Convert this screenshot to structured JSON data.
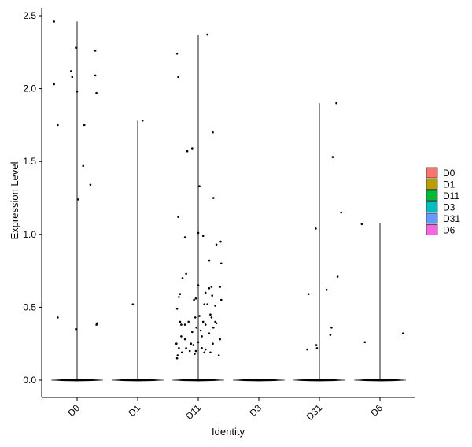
{
  "chart_data": {
    "type": "scatter",
    "subtype": "violin-with-jitter",
    "xlabel": "Identity",
    "ylabel": "Expression Level",
    "categories": [
      "D0",
      "D1",
      "D11",
      "D3",
      "D31",
      "D6"
    ],
    "ylim": [
      -0.13,
      2.55
    ],
    "yticks": [
      0.0,
      0.5,
      1.0,
      1.5,
      2.0,
      2.5
    ],
    "ytick_labels": [
      "0.0",
      "0.5",
      "1.0",
      "1.5",
      "2.0",
      "2.5"
    ],
    "grid": false,
    "legend_position": "right",
    "legend": [
      {
        "name": "D0",
        "color": "#F8766D"
      },
      {
        "name": "D1",
        "color": "#B79F00"
      },
      {
        "name": "D11",
        "color": "#00BA38"
      },
      {
        "name": "D3",
        "color": "#00BFC4"
      },
      {
        "name": "D31",
        "color": "#619CFF"
      },
      {
        "name": "D6",
        "color": "#F564E3"
      }
    ],
    "violins": [
      {
        "category": "D0",
        "max": 2.46,
        "baseline": 0.0
      },
      {
        "category": "D1",
        "max": 1.78,
        "baseline": 0.0
      },
      {
        "category": "D11",
        "max": 2.37,
        "baseline": 0.0
      },
      {
        "category": "D3",
        "max": 0.0,
        "baseline": 0.0
      },
      {
        "category": "D31",
        "max": 1.9,
        "baseline": 0.0
      },
      {
        "category": "D6",
        "max": 1.08,
        "baseline": 0.0
      }
    ],
    "points": [
      {
        "category": "D0",
        "x": -0.38,
        "y": 2.46
      },
      {
        "category": "D0",
        "x": 0.3,
        "y": 2.26
      },
      {
        "category": "D0",
        "x": -0.02,
        "y": 2.28
      },
      {
        "category": "D0",
        "x": -0.1,
        "y": 2.12
      },
      {
        "category": "D0",
        "x": -0.08,
        "y": 2.08
      },
      {
        "category": "D0",
        "x": 0.3,
        "y": 2.09
      },
      {
        "category": "D0",
        "x": -0.38,
        "y": 2.03
      },
      {
        "category": "D0",
        "x": 0.0,
        "y": 1.98
      },
      {
        "category": "D0",
        "x": 0.32,
        "y": 1.97
      },
      {
        "category": "D0",
        "x": -0.32,
        "y": 1.75
      },
      {
        "category": "D0",
        "x": 0.12,
        "y": 1.75
      },
      {
        "category": "D0",
        "x": 0.1,
        "y": 1.47
      },
      {
        "category": "D0",
        "x": 0.22,
        "y": 1.34
      },
      {
        "category": "D0",
        "x": 0.02,
        "y": 1.24
      },
      {
        "category": "D0",
        "x": -0.32,
        "y": 0.43
      },
      {
        "category": "D0",
        "x": 0.33,
        "y": 0.39
      },
      {
        "category": "D0",
        "x": 0.32,
        "y": 0.38
      },
      {
        "category": "D0",
        "x": -0.02,
        "y": 0.35
      },
      {
        "category": "D1",
        "x": 0.08,
        "y": 1.78
      },
      {
        "category": "D1",
        "x": -0.08,
        "y": 0.52
      },
      {
        "category": "D11",
        "x": -0.35,
        "y": 2.24
      },
      {
        "category": "D11",
        "x": 0.15,
        "y": 2.37
      },
      {
        "category": "D11",
        "x": -0.33,
        "y": 2.08
      },
      {
        "category": "D11",
        "x": 0.24,
        "y": 1.7
      },
      {
        "category": "D11",
        "x": -0.1,
        "y": 1.59
      },
      {
        "category": "D11",
        "x": -0.18,
        "y": 1.57
      },
      {
        "category": "D11",
        "x": 0.02,
        "y": 1.33
      },
      {
        "category": "D11",
        "x": 0.25,
        "y": 1.25
      },
      {
        "category": "D11",
        "x": -0.33,
        "y": 1.12
      },
      {
        "category": "D11",
        "x": 0.0,
        "y": 1.01
      },
      {
        "category": "D11",
        "x": 0.08,
        "y": 0.99
      },
      {
        "category": "D11",
        "x": -0.22,
        "y": 0.98
      },
      {
        "category": "D11",
        "x": 0.37,
        "y": 0.95
      },
      {
        "category": "D11",
        "x": 0.3,
        "y": 0.93
      },
      {
        "category": "D11",
        "x": 0.18,
        "y": 0.82
      },
      {
        "category": "D11",
        "x": 0.38,
        "y": 0.8
      },
      {
        "category": "D11",
        "x": -0.2,
        "y": 0.73
      },
      {
        "category": "D11",
        "x": -0.26,
        "y": 0.7
      },
      {
        "category": "D11",
        "x": 0.0,
        "y": 0.65
      },
      {
        "category": "D11",
        "x": 0.18,
        "y": 0.63
      },
      {
        "category": "D11",
        "x": 0.22,
        "y": 0.64
      },
      {
        "category": "D11",
        "x": 0.36,
        "y": 0.64
      },
      {
        "category": "D11",
        "x": -0.3,
        "y": 0.59
      },
      {
        "category": "D11",
        "x": -0.32,
        "y": 0.57
      },
      {
        "category": "D11",
        "x": 0.12,
        "y": 0.6
      },
      {
        "category": "D11",
        "x": 0.23,
        "y": 0.58
      },
      {
        "category": "D11",
        "x": -0.07,
        "y": 0.55
      },
      {
        "category": "D11",
        "x": -0.04,
        "y": 0.56
      },
      {
        "category": "D11",
        "x": 0.38,
        "y": 0.55
      },
      {
        "category": "D11",
        "x": 0.1,
        "y": 0.52
      },
      {
        "category": "D11",
        "x": 0.15,
        "y": 0.52
      },
      {
        "category": "D11",
        "x": 0.28,
        "y": 0.51
      },
      {
        "category": "D11",
        "x": -0.35,
        "y": 0.49
      },
      {
        "category": "D11",
        "x": 0.2,
        "y": 0.45
      },
      {
        "category": "D11",
        "x": -0.05,
        "y": 0.43
      },
      {
        "category": "D11",
        "x": 0.02,
        "y": 0.44
      },
      {
        "category": "D11",
        "x": 0.22,
        "y": 0.43
      },
      {
        "category": "D11",
        "x": -0.3,
        "y": 0.4
      },
      {
        "category": "D11",
        "x": -0.28,
        "y": 0.38
      },
      {
        "category": "D11",
        "x": -0.22,
        "y": 0.38
      },
      {
        "category": "D11",
        "x": -0.16,
        "y": 0.4
      },
      {
        "category": "D11",
        "x": 0.08,
        "y": 0.4
      },
      {
        "category": "D11",
        "x": 0.12,
        "y": 0.38
      },
      {
        "category": "D11",
        "x": 0.28,
        "y": 0.4
      },
      {
        "category": "D11",
        "x": 0.3,
        "y": 0.39
      },
      {
        "category": "D11",
        "x": -0.03,
        "y": 0.36
      },
      {
        "category": "D11",
        "x": 0.04,
        "y": 0.34
      },
      {
        "category": "D11",
        "x": 0.25,
        "y": 0.36
      },
      {
        "category": "D11",
        "x": -0.1,
        "y": 0.33
      },
      {
        "category": "D11",
        "x": 0.18,
        "y": 0.32
      },
      {
        "category": "D11",
        "x": -0.28,
        "y": 0.3
      },
      {
        "category": "D11",
        "x": 0.06,
        "y": 0.3
      },
      {
        "category": "D11",
        "x": -0.22,
        "y": 0.28
      },
      {
        "category": "D11",
        "x": 0.36,
        "y": 0.28
      },
      {
        "category": "D11",
        "x": -0.36,
        "y": 0.25
      },
      {
        "category": "D11",
        "x": -0.12,
        "y": 0.25
      },
      {
        "category": "D11",
        "x": 0.0,
        "y": 0.26
      },
      {
        "category": "D11",
        "x": -0.08,
        "y": 0.24
      },
      {
        "category": "D11",
        "x": 0.24,
        "y": 0.25
      },
      {
        "category": "D11",
        "x": -0.32,
        "y": 0.22
      },
      {
        "category": "D11",
        "x": -0.2,
        "y": 0.22
      },
      {
        "category": "D11",
        "x": -0.14,
        "y": 0.2
      },
      {
        "category": "D11",
        "x": -0.04,
        "y": 0.2
      },
      {
        "category": "D11",
        "x": 0.06,
        "y": 0.22
      },
      {
        "category": "D11",
        "x": 0.12,
        "y": 0.21
      },
      {
        "category": "D11",
        "x": -0.27,
        "y": 0.19
      },
      {
        "category": "D11",
        "x": 0.2,
        "y": 0.19
      },
      {
        "category": "D11",
        "x": -0.34,
        "y": 0.17
      },
      {
        "category": "D11",
        "x": -0.06,
        "y": 0.18
      },
      {
        "category": "D11",
        "x": 0.1,
        "y": 0.19
      },
      {
        "category": "D11",
        "x": 0.34,
        "y": 0.17
      },
      {
        "category": "D11",
        "x": -0.35,
        "y": 0.15
      },
      {
        "category": "D31",
        "x": 0.28,
        "y": 1.9
      },
      {
        "category": "D31",
        "x": 0.22,
        "y": 1.53
      },
      {
        "category": "D31",
        "x": 0.36,
        "y": 1.15
      },
      {
        "category": "D31",
        "x": -0.06,
        "y": 1.04
      },
      {
        "category": "D31",
        "x": 0.3,
        "y": 0.71
      },
      {
        "category": "D31",
        "x": 0.12,
        "y": 0.62
      },
      {
        "category": "D31",
        "x": -0.18,
        "y": 0.59
      },
      {
        "category": "D31",
        "x": 0.2,
        "y": 0.36
      },
      {
        "category": "D31",
        "x": 0.18,
        "y": 0.31
      },
      {
        "category": "D31",
        "x": -0.05,
        "y": 0.24
      },
      {
        "category": "D31",
        "x": -0.04,
        "y": 0.22
      },
      {
        "category": "D31",
        "x": -0.2,
        "y": 0.21
      },
      {
        "category": "D6",
        "x": -0.3,
        "y": 1.07
      },
      {
        "category": "D6",
        "x": -0.25,
        "y": 0.26
      },
      {
        "category": "D6",
        "x": 0.38,
        "y": 0.32
      }
    ]
  }
}
